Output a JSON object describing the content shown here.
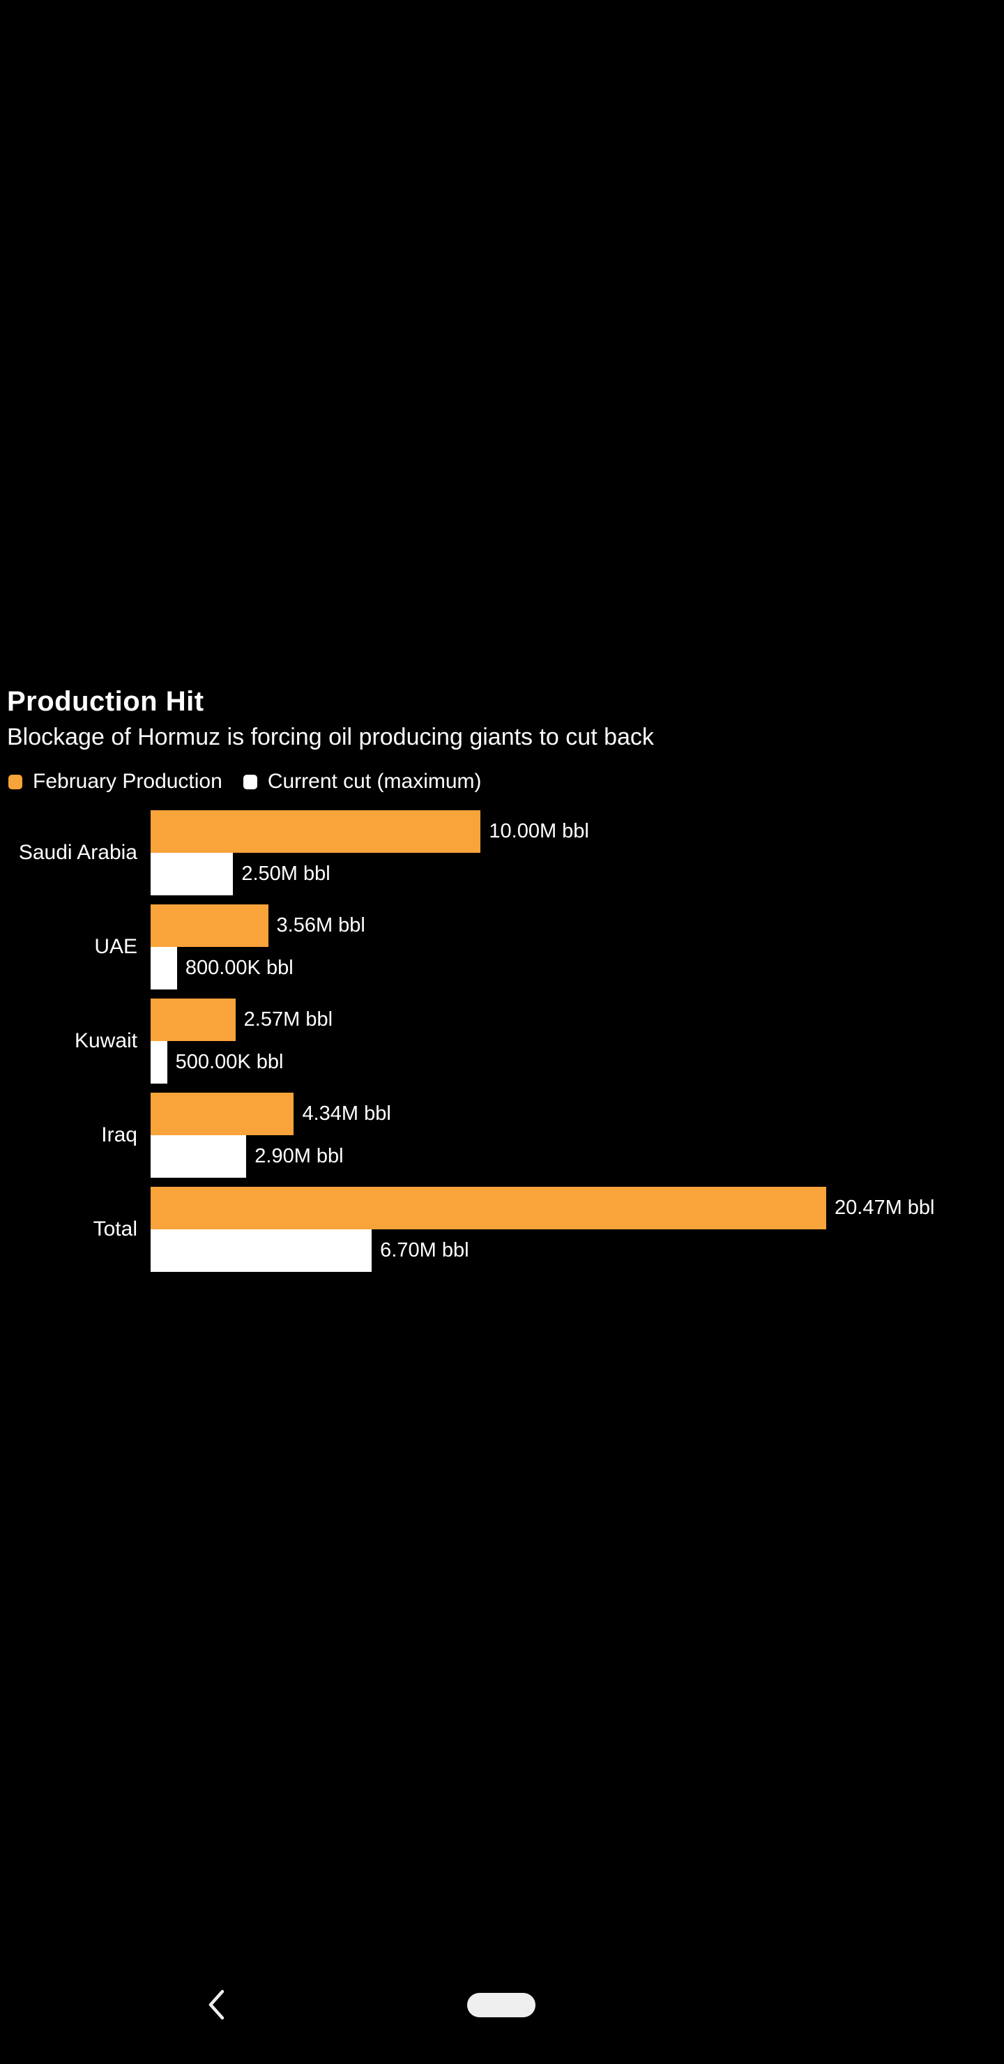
{
  "chart_data": {
    "type": "bar",
    "orientation": "horizontal",
    "title": "Production Hit",
    "subtitle": "Blockage of Hormuz is forcing oil producing giants to cut back",
    "unit": "bbl",
    "categories": [
      "Saudi Arabia",
      "UAE",
      "Kuwait",
      "Iraq",
      "Total"
    ],
    "series": [
      {
        "name": "February Production",
        "color": "#F9A33B",
        "values_millions": [
          10.0,
          3.56,
          2.57,
          4.34,
          20.47
        ],
        "labels": [
          "10.00M bbl",
          "3.56M bbl",
          "2.57M bbl",
          "4.34M bbl",
          "20.47M bbl"
        ]
      },
      {
        "name": "Current cut (maximum)",
        "color": "#FFFFFF",
        "values_millions": [
          2.5,
          0.8,
          0.5,
          2.9,
          6.7
        ],
        "labels": [
          "2.50M bbl",
          "800.00K bbl",
          "500.00K bbl",
          "2.90M bbl",
          "6.70M bbl"
        ]
      }
    ],
    "x_axis_max_millions": 20.47,
    "grid": false,
    "legend_position": "top-left",
    "background_color": "#000000",
    "text_color": "#FFFFFF"
  },
  "nav_bar": {
    "back_icon": "chevron-left",
    "back_icon_color": "#EFEFEF",
    "home_indicator_color": "#EFEFEF"
  }
}
